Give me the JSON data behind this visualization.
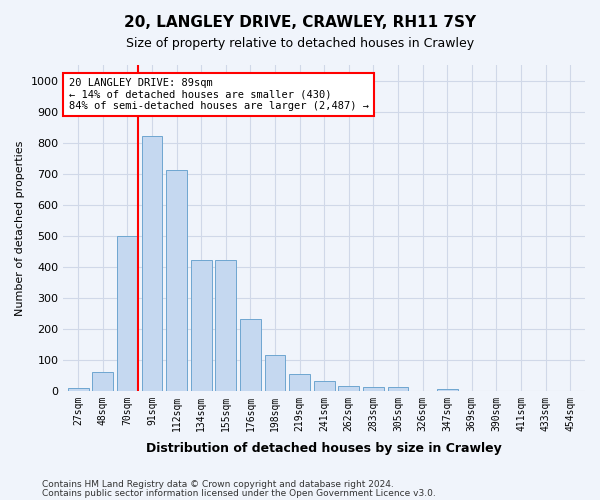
{
  "title1": "20, LANGLEY DRIVE, CRAWLEY, RH11 7SY",
  "title2": "Size of property relative to detached houses in Crawley",
  "xlabel": "Distribution of detached houses by size in Crawley",
  "ylabel": "Number of detached properties",
  "bin_labels": [
    "27sqm",
    "48sqm",
    "70sqm",
    "91sqm",
    "112sqm",
    "134sqm",
    "155sqm",
    "176sqm",
    "198sqm",
    "219sqm",
    "241sqm",
    "262sqm",
    "283sqm",
    "305sqm",
    "326sqm",
    "347sqm",
    "369sqm",
    "390sqm",
    "411sqm",
    "433sqm",
    "454sqm"
  ],
  "bar_values": [
    10,
    60,
    500,
    820,
    710,
    420,
    420,
    230,
    115,
    55,
    30,
    15,
    12,
    12,
    0,
    7,
    0,
    0,
    0,
    0,
    0
  ],
  "bar_color": "#c5d8f0",
  "bar_edge_color": "#6ea6d0",
  "property_value_sqm": 89,
  "property_bin_index": 2,
  "annotation_line1": "20 LANGLEY DRIVE: 89sqm",
  "annotation_line2": "← 14% of detached houses are smaller (430)",
  "annotation_line3": "84% of semi-detached houses are larger (2,487) →",
  "annotation_box_color": "white",
  "annotation_box_edge": "red",
  "vline_color": "red",
  "grid_color": "#d0d8e8",
  "ylim": [
    0,
    1050
  ],
  "yticks": [
    0,
    100,
    200,
    300,
    400,
    500,
    600,
    700,
    800,
    900,
    1000
  ],
  "footer1": "Contains HM Land Registry data © Crown copyright and database right 2024.",
  "footer2": "Contains public sector information licensed under the Open Government Licence v3.0.",
  "bg_color": "#f0f4fb"
}
